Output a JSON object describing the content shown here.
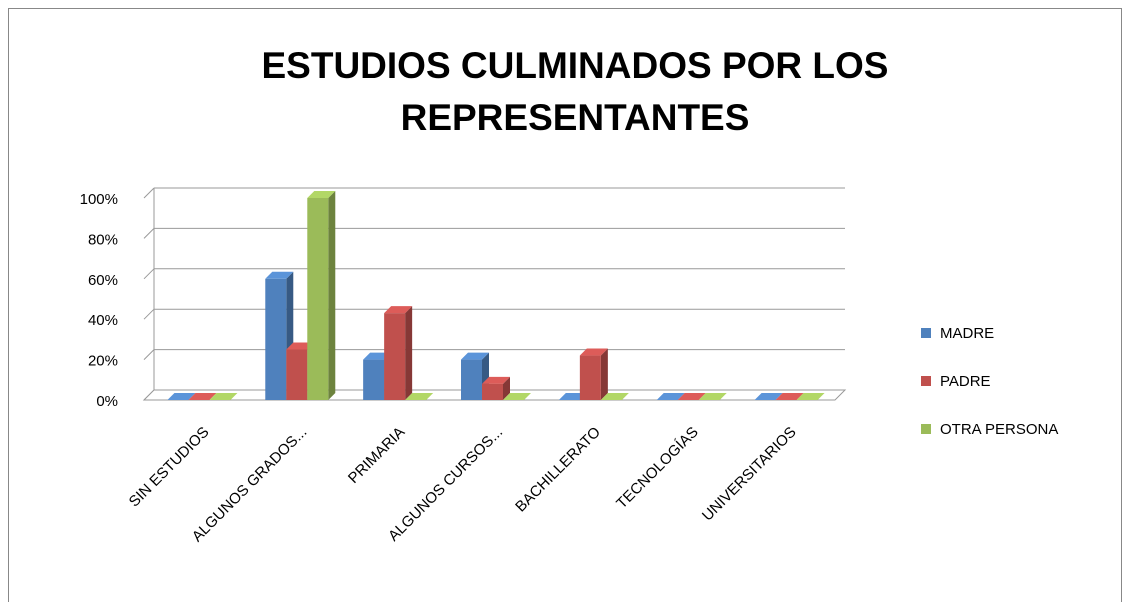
{
  "chart_data": {
    "type": "bar3d",
    "title": "ESTUDIOS CULMINADOS POR LOS REPRESENTANTES",
    "categories": [
      "SIN ESTUDIOS",
      "ALGUNOS GRADOS...",
      "PRIMARIA",
      "ALGUNOS CURSOS...",
      "BACHILLERATO",
      "TECNOLOGÍAS",
      "UNIVERSITARIOS"
    ],
    "series": [
      {
        "name": "MADRE",
        "color": "#4f81bd",
        "values": [
          0,
          60,
          20,
          20,
          0,
          0,
          0
        ]
      },
      {
        "name": "PADRE",
        "color": "#c0504d",
        "values": [
          0,
          25,
          43,
          8,
          22,
          0,
          0
        ]
      },
      {
        "name": "OTRA PERSONA",
        "color": "#9bbb59",
        "values": [
          0,
          100,
          0,
          0,
          0,
          0,
          0
        ]
      }
    ],
    "ylim": [
      0,
      100
    ],
    "yticks": [
      {
        "value": 0,
        "label": "0%"
      },
      {
        "value": 20,
        "label": "20%"
      },
      {
        "value": 40,
        "label": "40%"
      },
      {
        "value": 60,
        "label": "60%"
      },
      {
        "value": 80,
        "label": "80%"
      },
      {
        "value": 100,
        "label": "100%"
      }
    ],
    "grid": true,
    "legend": "right"
  }
}
